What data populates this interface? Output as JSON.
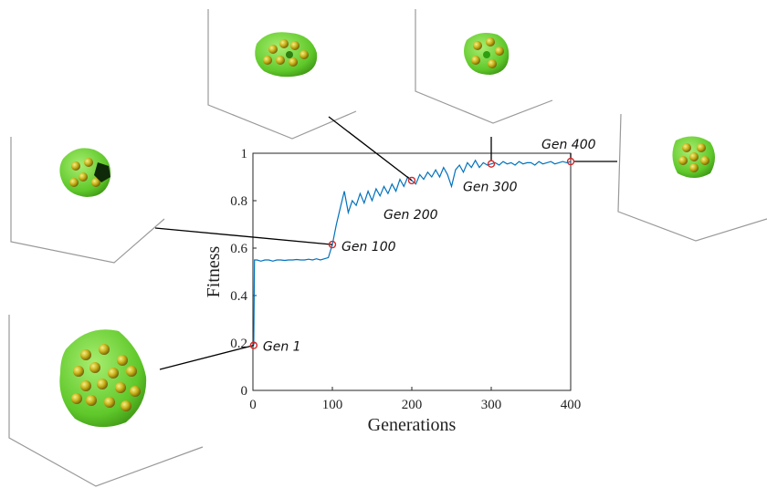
{
  "chart_data": {
    "type": "line",
    "x_label": "Generations",
    "y_label": "Fitness",
    "xlim": [
      0,
      400
    ],
    "ylim": [
      0,
      1
    ],
    "xticks": [
      0,
      100,
      200,
      300,
      400
    ],
    "yticks": [
      0,
      0.2,
      0.4,
      0.6,
      0.8,
      1
    ],
    "series": [
      {
        "color": "#0072bd",
        "x": [
          1,
          2,
          5,
          10,
          15,
          20,
          25,
          30,
          35,
          40,
          45,
          50,
          55,
          60,
          65,
          70,
          75,
          80,
          85,
          90,
          95,
          100,
          105,
          110,
          115,
          120,
          125,
          130,
          135,
          140,
          145,
          150,
          155,
          160,
          165,
          170,
          175,
          180,
          185,
          190,
          195,
          200,
          205,
          210,
          215,
          220,
          225,
          230,
          235,
          240,
          245,
          250,
          255,
          260,
          265,
          270,
          275,
          280,
          285,
          290,
          295,
          300,
          305,
          310,
          315,
          320,
          325,
          330,
          335,
          340,
          345,
          350,
          355,
          360,
          365,
          370,
          375,
          380,
          385,
          390,
          395,
          400
        ],
        "values": [
          0.19,
          0.55,
          0.55,
          0.545,
          0.55,
          0.55,
          0.545,
          0.55,
          0.55,
          0.548,
          0.55,
          0.55,
          0.552,
          0.55,
          0.55,
          0.553,
          0.55,
          0.555,
          0.55,
          0.555,
          0.56,
          0.615,
          0.7,
          0.77,
          0.84,
          0.75,
          0.8,
          0.78,
          0.83,
          0.79,
          0.84,
          0.8,
          0.85,
          0.82,
          0.86,
          0.83,
          0.87,
          0.84,
          0.89,
          0.86,
          0.9,
          0.885,
          0.87,
          0.91,
          0.89,
          0.92,
          0.9,
          0.93,
          0.9,
          0.94,
          0.91,
          0.86,
          0.93,
          0.95,
          0.92,
          0.96,
          0.94,
          0.97,
          0.94,
          0.96,
          0.95,
          0.955,
          0.96,
          0.95,
          0.965,
          0.955,
          0.96,
          0.95,
          0.965,
          0.955,
          0.96,
          0.96,
          0.95,
          0.965,
          0.955,
          0.96,
          0.965,
          0.955,
          0.96,
          0.965,
          0.96,
          0.965
        ]
      }
    ],
    "highlights": {
      "color": "#d62728",
      "x": [
        1,
        100,
        200,
        300,
        400
      ],
      "values": [
        0.19,
        0.615,
        0.885,
        0.955,
        0.965
      ],
      "labels": [
        "Gen 1",
        "Gen 100",
        "Gen 200",
        "Gen 300",
        "Gen 400"
      ]
    }
  }
}
